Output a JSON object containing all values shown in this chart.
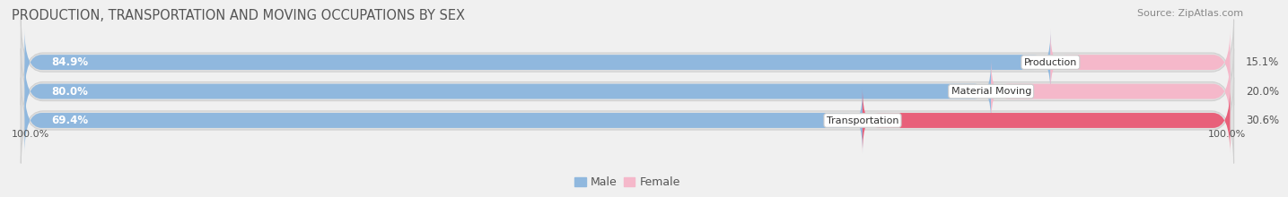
{
  "title": "PRODUCTION, TRANSPORTATION AND MOVING OCCUPATIONS BY SEX",
  "source": "Source: ZipAtlas.com",
  "categories": [
    "Production",
    "Material Moving",
    "Transportation"
  ],
  "male_pct": [
    84.9,
    80.0,
    69.4
  ],
  "female_pct": [
    15.1,
    20.0,
    30.6
  ],
  "male_color": "#90b8de",
  "female_color_production": "#f5b8ca",
  "female_color_material": "#f5b8ca",
  "female_color_transport": "#e8607a",
  "bar_bg_color": "#e0e0e0",
  "bar_border_color": "#d0d0d0",
  "title_fontsize": 10.5,
  "source_fontsize": 8,
  "bar_label_fontsize": 8.5,
  "axis_label_fontsize": 8,
  "legend_fontsize": 9,
  "bar_height": 0.62,
  "fig_bg_color": "#f0f0f0",
  "x_left_label": "100.0%",
  "x_right_label": "100.0%",
  "male_legend_color": "#90b8de",
  "female_legend_color": "#f5b8ca"
}
